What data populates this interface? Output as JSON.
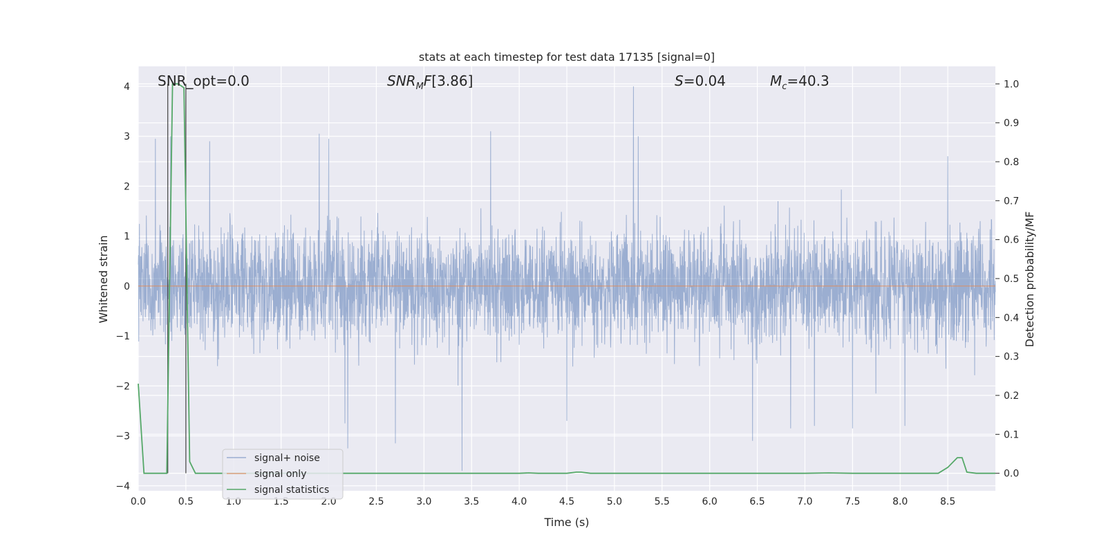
{
  "chart_data": {
    "type": "line",
    "title": "stats at each timestep for test data 17135 [signal=0]",
    "xlabel": "Time (s)",
    "ylabel": "Whitened strain",
    "y2label": "Detection probability/MF",
    "xlim": [
      0.0,
      9.0
    ],
    "ylim": [
      -4.1,
      4.4
    ],
    "y2lim": [
      -0.045,
      1.045
    ],
    "grid": true,
    "x_ticks": [
      0.0,
      0.5,
      1.0,
      1.5,
      2.0,
      2.5,
      3.0,
      3.5,
      4.0,
      4.5,
      5.0,
      5.5,
      6.0,
      6.5,
      7.0,
      7.5,
      8.0,
      8.5
    ],
    "x_tick_labels": [
      "0.0",
      "0.5",
      "1.0",
      "1.5",
      "2.0",
      "2.5",
      "3.0",
      "3.5",
      "4.0",
      "4.5",
      "5.0",
      "5.5",
      "6.0",
      "6.5",
      "7.0",
      "7.5",
      "8.0",
      "8.5"
    ],
    "y_ticks": [
      -4,
      -3,
      -2,
      -1,
      0,
      1,
      2,
      3,
      4
    ],
    "y_tick_labels": [
      "−4",
      "−3",
      "−2",
      "−1",
      "0",
      "1",
      "2",
      "3",
      "4"
    ],
    "y2_ticks": [
      0.0,
      0.1,
      0.2,
      0.3,
      0.4,
      0.5,
      0.6,
      0.7,
      0.8,
      0.9,
      1.0
    ],
    "y2_tick_labels": [
      "0.0",
      "0.1",
      "0.2",
      "0.3",
      "0.4",
      "0.5",
      "0.6",
      "0.7",
      "0.8",
      "0.9",
      "1.0"
    ],
    "annotations": {
      "snr_opt": "SNR_opt=0.0",
      "snr_mf": "[3.86]",
      "s": "=0.04",
      "mc": "=40.3"
    },
    "legend": {
      "location": "lower left",
      "entries": [
        "signal+ noise",
        "signal only",
        "signal statistics"
      ]
    },
    "series": [
      {
        "name": "signal+ noise",
        "color": "#4c72b0",
        "axis": "left",
        "approx_spikes": [
          [
            0.18,
            2.95
          ],
          [
            0.34,
            3.0
          ],
          [
            0.75,
            2.9
          ],
          [
            1.9,
            3.05
          ],
          [
            2.0,
            2.95
          ],
          [
            3.7,
            3.1
          ],
          [
            5.2,
            4.0
          ],
          [
            5.25,
            3.0
          ],
          [
            8.5,
            2.6
          ],
          [
            2.17,
            -2.75
          ],
          [
            2.2,
            -3.25
          ],
          [
            2.7,
            -3.15
          ],
          [
            3.4,
            -3.7
          ],
          [
            4.5,
            -2.7
          ],
          [
            6.45,
            -3.1
          ],
          [
            6.85,
            -2.85
          ],
          [
            7.1,
            -2.8
          ],
          [
            7.5,
            -2.85
          ],
          [
            8.05,
            -2.8
          ]
        ],
        "envelope_upper": 1.6,
        "envelope_lower": -1.6
      },
      {
        "name": "signal only",
        "color": "#dd8452",
        "axis": "left",
        "values_constant": 0.0
      },
      {
        "name": "signal statistics",
        "color": "#55a868",
        "axis": "right",
        "x": [
          0.0,
          0.06,
          0.12,
          0.18,
          0.24,
          0.3,
          0.36,
          0.42,
          0.48,
          0.54,
          0.6,
          0.66,
          1.0,
          2.0,
          3.0,
          4.0,
          4.1,
          4.2,
          4.5,
          4.6,
          4.65,
          4.75,
          5.0,
          6.0,
          7.0,
          7.25,
          7.5,
          8.0,
          8.4,
          8.5,
          8.6,
          8.65,
          8.7,
          8.8,
          8.9,
          9.0
        ],
        "values": [
          0.23,
          0.0,
          0.0,
          0.0,
          0.0,
          0.0,
          1.0,
          1.0,
          0.99,
          0.03,
          0.0,
          0.0,
          0.0,
          0.0,
          0.0,
          0.0,
          0.001,
          0.0,
          0.0,
          0.003,
          0.003,
          0.0,
          0.0,
          0.0,
          0.0,
          0.001,
          0.0,
          0.0,
          0.0,
          0.015,
          0.04,
          0.04,
          0.003,
          0.0,
          0.0,
          0.0
        ]
      }
    ],
    "vertical_lines": {
      "color": "#404040",
      "x": [
        0.31,
        0.5
      ],
      "y2_range": [
        0.0,
        1.0
      ]
    }
  }
}
